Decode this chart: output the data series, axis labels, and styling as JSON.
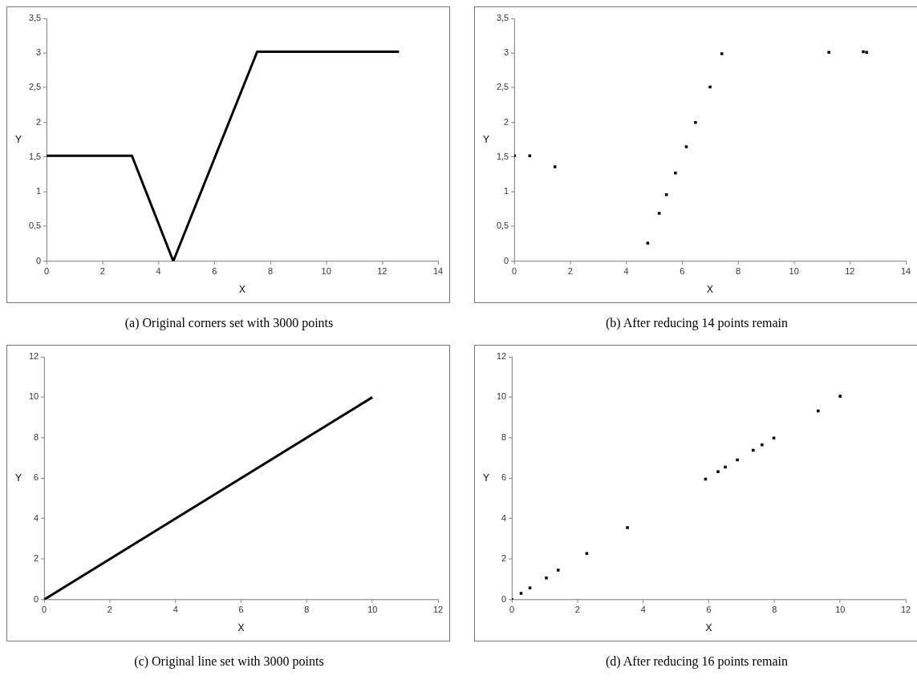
{
  "chart_data": [
    {
      "type": "line",
      "title": "(a)  Original corners set with 3000 points",
      "xlabel": "X",
      "ylabel": "Y",
      "marker": "none",
      "line_style": "solid",
      "legend": false,
      "grid": false,
      "xlim": [
        0,
        14
      ],
      "xticks": [
        0,
        2,
        4,
        6,
        8,
        10,
        12,
        14
      ],
      "ylim": [
        0,
        3.5
      ],
      "yticks": [
        0,
        {
          "value": 0.5,
          "label": "0,5"
        },
        1,
        {
          "value": 1.5,
          "label": "1,5"
        },
        2,
        {
          "value": 2.5,
          "label": "2,5"
        },
        3,
        {
          "value": 3.5,
          "label": "3,5"
        }
      ],
      "series": [
        {
          "color": "#000000",
          "x": [
            0,
            3.05,
            4.53,
            7.53,
            12.6
          ],
          "values": [
            1.52,
            1.52,
            0,
            3.02,
            3.02
          ]
        }
      ]
    },
    {
      "type": "scatter",
      "title": "(b)  After reducing 14 points remain",
      "xlabel": "X",
      "ylabel": "Y",
      "marker": "square",
      "legend": false,
      "grid": false,
      "xlim": [
        0,
        14
      ],
      "xticks": [
        0,
        2,
        4,
        6,
        8,
        10,
        12,
        14
      ],
      "ylim": [
        0,
        3.5
      ],
      "yticks": [
        0,
        {
          "value": 0.5,
          "label": "0,5"
        },
        1,
        {
          "value": 1.5,
          "label": "1,5"
        },
        2,
        {
          "value": 2.5,
          "label": "2,5"
        },
        3,
        {
          "value": 3.5,
          "label": "3,5"
        }
      ],
      "series": [
        {
          "color": "#000000",
          "x": [
            0,
            0.55,
            1.45,
            4.77,
            5.18,
            5.44,
            5.76,
            6.15,
            6.48,
            7.0,
            7.42,
            11.25,
            12.48,
            12.6
          ],
          "values": [
            1.52,
            1.52,
            1.36,
            0.26,
            0.69,
            0.96,
            1.27,
            1.65,
            2.0,
            2.51,
            2.99,
            3.01,
            3.02,
            3.01
          ]
        }
      ]
    },
    {
      "type": "line",
      "title": "(c)  Original line set with 3000 points",
      "xlabel": "X",
      "ylabel": "Y",
      "marker": "none",
      "line_style": "solid",
      "legend": false,
      "grid": false,
      "xlim": [
        0,
        12
      ],
      "xticks": [
        0,
        2,
        4,
        6,
        8,
        10,
        12
      ],
      "ylim": [
        0,
        12
      ],
      "yticks": [
        0,
        2,
        4,
        6,
        8,
        10,
        12
      ],
      "series": [
        {
          "color": "#000000",
          "x": [
            0,
            10
          ],
          "values": [
            0,
            10
          ]
        }
      ]
    },
    {
      "type": "scatter",
      "title": "(d)  After reducing 16 points remain",
      "xlabel": "X",
      "ylabel": "Y",
      "marker": "square",
      "legend": false,
      "grid": false,
      "xlim": [
        0,
        12
      ],
      "xticks": [
        0,
        2,
        4,
        6,
        8,
        10,
        12
      ],
      "ylim": [
        0,
        12
      ],
      "yticks": [
        0,
        2,
        4,
        6,
        8,
        10,
        12
      ],
      "series": [
        {
          "color": "#000000",
          "x": [
            0,
            0.28,
            0.55,
            1.05,
            1.41,
            2.28,
            3.52,
            5.9,
            6.28,
            6.5,
            6.87,
            7.35,
            7.62,
            7.98,
            9.33,
            10
          ],
          "values": [
            0,
            0.3,
            0.57,
            1.07,
            1.45,
            2.28,
            3.55,
            5.95,
            6.32,
            6.55,
            6.9,
            7.38,
            7.65,
            7.98,
            9.32,
            10.05
          ]
        }
      ]
    }
  ]
}
